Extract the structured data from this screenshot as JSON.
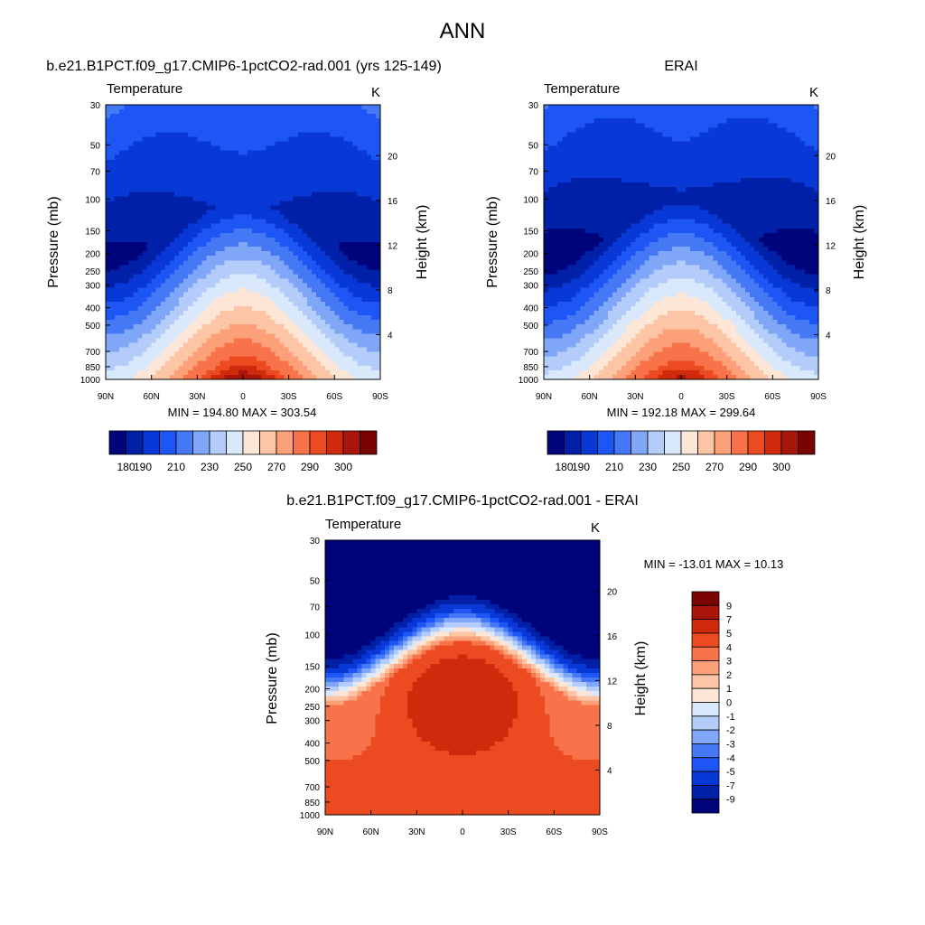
{
  "page": {
    "title": "ANN"
  },
  "colors": {
    "abs_scale": [
      "#00047a",
      "#0020a8",
      "#0838d6",
      "#1e55f5",
      "#4478f5",
      "#80a6f8",
      "#b4ccfa",
      "#d9e8fb",
      "#fde6d6",
      "#fcc6a6",
      "#fca07a",
      "#f9734a",
      "#ec4a20",
      "#cf2a0c",
      "#a8160b",
      "#7a0404"
    ],
    "diff_scale": [
      "#00047a",
      "#0020a8",
      "#0838d6",
      "#1e55f5",
      "#4478f5",
      "#80a6f8",
      "#b4ccfa",
      "#d9e8fb",
      "#fde6d6",
      "#fcc6a6",
      "#fca07a",
      "#f9734a",
      "#ec4a20",
      "#cf2a0c",
      "#a8160b",
      "#7a0404"
    ],
    "missing": "#ffffff"
  },
  "chart_data": [
    {
      "type": "heatmap",
      "title": "b.e21.B1PCT.f09_g17.CMIP6-1pctCO2-rad.001 (yrs 125-149)",
      "subtitle_left": "Temperature",
      "subtitle_right": "K",
      "ylabel": "Pressure (mb)",
      "ylabel_right": "Height (km)",
      "x_ticks": [
        "90N",
        "60N",
        "30N",
        "0",
        "30S",
        "60S",
        "90S"
      ],
      "x_tick_values": [
        90,
        60,
        30,
        0,
        -30,
        -60,
        -90
      ],
      "y_ticks": [
        "30",
        "50",
        "70",
        "100",
        "150",
        "200",
        "250",
        "300",
        "400",
        "500",
        "700",
        "850",
        "1000"
      ],
      "y_tick_values": [
        30,
        50,
        70,
        100,
        150,
        200,
        250,
        300,
        400,
        500,
        700,
        850,
        1000
      ],
      "y_right_ticks": [
        "20",
        "16",
        "12",
        "8",
        "4"
      ],
      "y_right_tick_values": [
        20,
        16,
        12,
        8,
        4
      ],
      "ylim": [
        1000,
        30
      ],
      "xlim": [
        90,
        -90
      ],
      "y_scale": "log",
      "min_label": "MIN = 194.80  MAX = 303.54",
      "min": 194.8,
      "max": 303.54,
      "colorbar_ticks": [
        "180",
        "190",
        "210",
        "230",
        "250",
        "270",
        "290",
        "300"
      ],
      "colorbar_levels": [
        180,
        190,
        200,
        210,
        220,
        230,
        240,
        250,
        260,
        270,
        280,
        290,
        295,
        300,
        305
      ],
      "legend_placement": "bottom",
      "field": "model"
    },
    {
      "type": "heatmap",
      "title": "ERAI",
      "subtitle_left": "Temperature",
      "subtitle_right": "K",
      "ylabel": "Pressure (mb)",
      "ylabel_right": "Height (km)",
      "x_ticks": [
        "90N",
        "60N",
        "30N",
        "0",
        "30S",
        "60S",
        "90S"
      ],
      "x_tick_values": [
        90,
        60,
        30,
        0,
        -30,
        -60,
        -90
      ],
      "y_ticks": [
        "30",
        "50",
        "70",
        "100",
        "150",
        "200",
        "250",
        "300",
        "400",
        "500",
        "700",
        "850",
        "1000"
      ],
      "y_tick_values": [
        30,
        50,
        70,
        100,
        150,
        200,
        250,
        300,
        400,
        500,
        700,
        850,
        1000
      ],
      "y_right_ticks": [
        "20",
        "16",
        "12",
        "8",
        "4"
      ],
      "y_right_tick_values": [
        20,
        16,
        12,
        8,
        4
      ],
      "ylim": [
        1000,
        30
      ],
      "xlim": [
        90,
        -90
      ],
      "y_scale": "log",
      "min_label": "MIN = 192.18  MAX = 299.64",
      "min": 192.18,
      "max": 299.64,
      "colorbar_ticks": [
        "180",
        "190",
        "210",
        "230",
        "250",
        "270",
        "290",
        "300"
      ],
      "colorbar_levels": [
        180,
        190,
        200,
        210,
        220,
        230,
        240,
        250,
        260,
        270,
        280,
        290,
        295,
        300,
        305
      ],
      "legend_placement": "bottom",
      "field": "obs"
    },
    {
      "type": "heatmap",
      "title": "b.e21.B1PCT.f09_g17.CMIP6-1pctCO2-rad.001 - ERAI",
      "subtitle_left": "Temperature",
      "subtitle_right": "K",
      "ylabel": "Pressure (mb)",
      "ylabel_right": "Height (km)",
      "x_ticks": [
        "90N",
        "60N",
        "30N",
        "0",
        "30S",
        "60S",
        "90S"
      ],
      "x_tick_values": [
        90,
        60,
        30,
        0,
        -30,
        -60,
        -90
      ],
      "y_ticks": [
        "30",
        "50",
        "70",
        "100",
        "150",
        "200",
        "250",
        "300",
        "400",
        "500",
        "700",
        "850",
        "1000"
      ],
      "y_tick_values": [
        30,
        50,
        70,
        100,
        150,
        200,
        250,
        300,
        400,
        500,
        700,
        850,
        1000
      ],
      "y_right_ticks": [
        "20",
        "16",
        "12",
        "8",
        "4"
      ],
      "y_right_tick_values": [
        20,
        16,
        12,
        8,
        4
      ],
      "ylim": [
        1000,
        30
      ],
      "xlim": [
        90,
        -90
      ],
      "y_scale": "log",
      "min_label": "MIN = -13.01  MAX =  10.13",
      "min": -13.01,
      "max": 10.13,
      "colorbar_ticks": [
        "9",
        "7",
        "5",
        "4",
        "3",
        "2",
        "1",
        "0",
        "-1",
        "-2",
        "-3",
        "-4",
        "-5",
        "-7",
        "-9"
      ],
      "colorbar_levels": [
        -9,
        -7,
        -5,
        -4,
        -3,
        -2,
        -1,
        0,
        1,
        2,
        3,
        4,
        5,
        7,
        9
      ],
      "legend_placement": "right",
      "field": "diff"
    }
  ]
}
